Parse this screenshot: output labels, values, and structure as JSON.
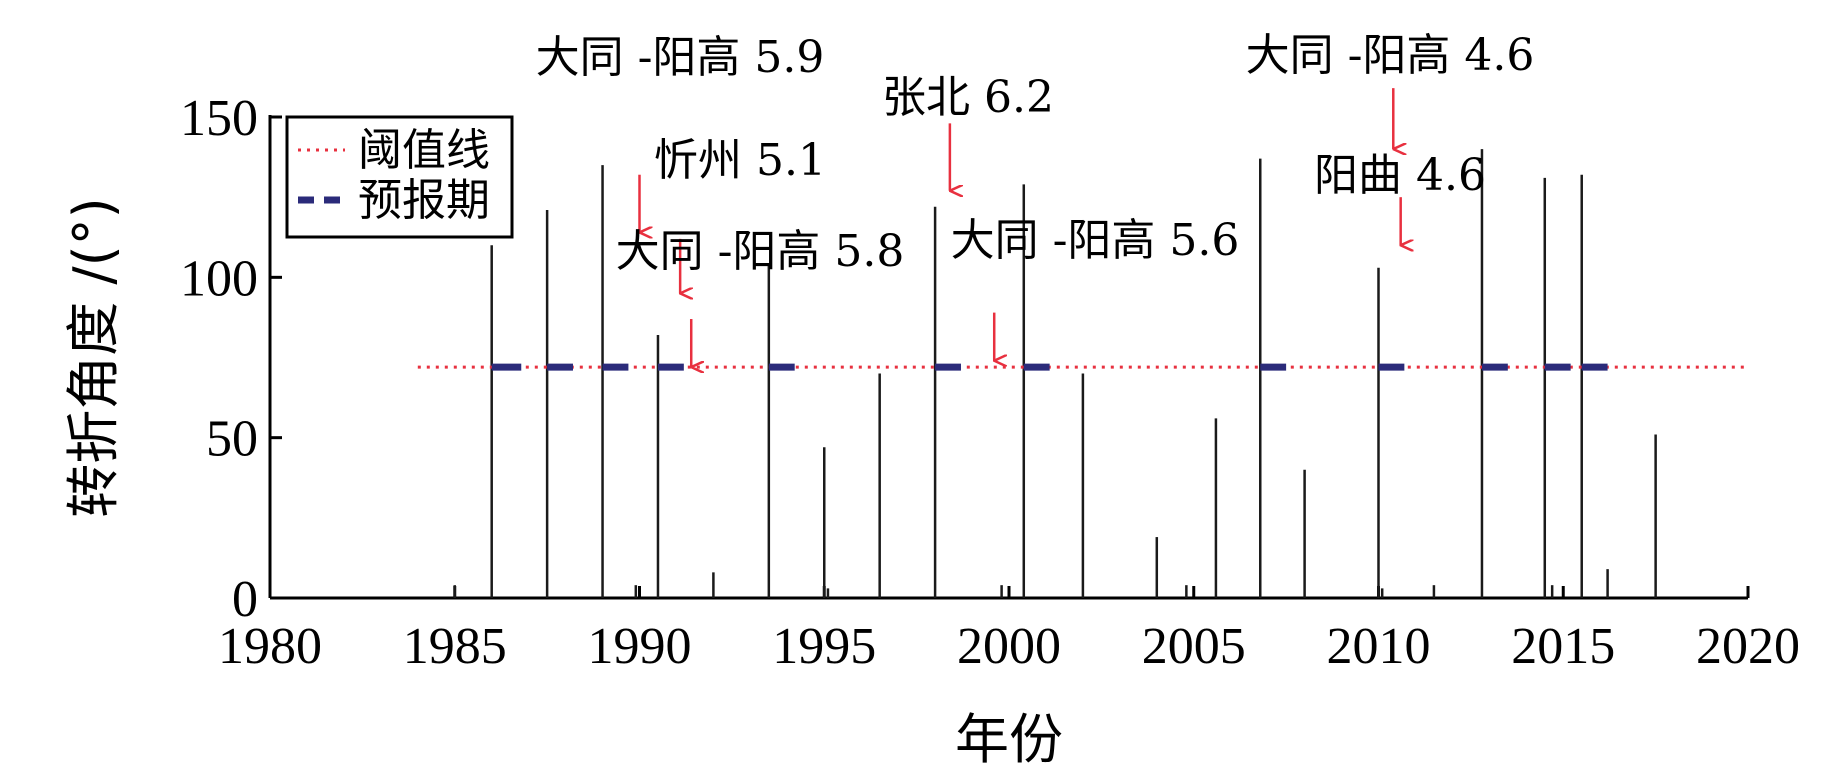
{
  "chart_data": {
    "type": "bar",
    "xlabel": "年份",
    "ylabel": "转折角度 /(°)",
    "xlim": [
      1980,
      2020
    ],
    "ylim": [
      0,
      150
    ],
    "xticks": [
      1980,
      1985,
      1990,
      1995,
      2000,
      2005,
      2010,
      2015,
      2020
    ],
    "yticks": [
      0,
      50,
      100,
      150
    ],
    "grid": false,
    "legend_position": "top-left",
    "colors": {
      "bars": "#1a1a1a",
      "threshold": "#e8303f",
      "forecast": "#2b2b7a",
      "arrows": "#e8303f",
      "axes": "#000000"
    },
    "series": [
      {
        "name": "转折角度",
        "x": [
          1985.0,
          1986.0,
          1987.5,
          1989.0,
          1989.9,
          1990.5,
          1992.0,
          1993.5,
          1995.0,
          1995.1,
          1996.5,
          1998.0,
          1999.8,
          2000.4,
          2002.0,
          2004.0,
          2004.8,
          2005.6,
          2006.8,
          2008.0,
          2010.0,
          2010.1,
          2011.5,
          2012.8,
          2014.5,
          2014.7,
          2015.5,
          2016.2,
          2017.5
        ],
        "values": [
          4,
          110,
          121,
          135,
          4,
          82,
          8,
          104,
          47,
          3,
          70,
          122,
          4,
          129,
          70,
          19,
          4,
          56,
          137,
          40,
          103,
          3,
          4,
          140,
          131,
          4,
          132,
          9,
          51
        ]
      },
      {
        "name": "阈值线",
        "style": "dotted",
        "x": [
          1984,
          2020
        ],
        "values": [
          72,
          72
        ]
      },
      {
        "name": "预报期",
        "style": "dashed",
        "y": 72,
        "segments": [
          [
            1986.0,
            1986.8
          ],
          [
            1987.5,
            1988.2
          ],
          [
            1989.0,
            1989.7
          ],
          [
            1990.5,
            1991.2
          ],
          [
            1993.5,
            1994.2
          ],
          [
            1998.0,
            1998.7
          ],
          [
            2000.4,
            2001.1
          ],
          [
            2006.8,
            2007.5
          ],
          [
            2010.0,
            2010.7
          ],
          [
            2012.8,
            2013.5
          ],
          [
            2014.5,
            2015.2
          ],
          [
            2015.5,
            2016.2
          ]
        ]
      }
    ],
    "legend": [
      {
        "label": "阈值线",
        "style": "dotted"
      },
      {
        "label": "预报期",
        "style": "dashed"
      }
    ],
    "annotations": [
      {
        "label": "大同 -阳高 5.9",
        "arrow_x": 1990.0,
        "arrow_y_from": 132,
        "arrow_y_to": 114
      },
      {
        "label": "忻州 5.1",
        "arrow_x": 1991.1,
        "arrow_y_from": 112,
        "arrow_y_to": 95
      },
      {
        "label": "大同 -阳高 5.8",
        "arrow_x": 1991.4,
        "arrow_y_from": 87,
        "arrow_y_to": 72
      },
      {
        "label": "张北 6.2",
        "arrow_x": 1998.4,
        "arrow_y_from": 148,
        "arrow_y_to": 127
      },
      {
        "label": "大同 -阳高 5.6",
        "arrow_x": 1999.6,
        "arrow_y_from": 89,
        "arrow_y_to": 74
      },
      {
        "label": "大同 -阳高 4.6",
        "arrow_x": 2010.4,
        "arrow_y_from": 159,
        "arrow_y_to": 140
      },
      {
        "label": "阳曲 4.6",
        "arrow_x": 2010.6,
        "arrow_y_from": 125,
        "arrow_y_to": 110
      }
    ]
  }
}
